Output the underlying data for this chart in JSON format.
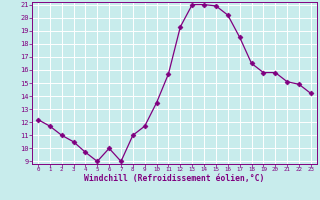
{
  "x": [
    0,
    1,
    2,
    3,
    4,
    5,
    6,
    7,
    8,
    9,
    10,
    11,
    12,
    13,
    14,
    15,
    16,
    17,
    18,
    19,
    20,
    21,
    22,
    23
  ],
  "y": [
    12.2,
    11.7,
    11.0,
    10.5,
    9.7,
    9.0,
    10.0,
    9.0,
    11.0,
    11.7,
    13.5,
    15.7,
    19.3,
    21.0,
    21.0,
    20.9,
    20.2,
    18.5,
    16.5,
    15.8,
    15.8,
    15.1,
    14.9,
    14.2
  ],
  "line_color": "#800080",
  "marker": "D",
  "marker_size": 2.5,
  "bg_color": "#c8ecec",
  "grid_color": "#b0d8d8",
  "xlabel": "Windchill (Refroidissement éolien,°C)",
  "xlabel_color": "#800080",
  "tick_color": "#800080",
  "spine_color": "#800080",
  "ylim": [
    9,
    21
  ],
  "xlim": [
    0,
    23
  ],
  "yticks": [
    9,
    10,
    11,
    12,
    13,
    14,
    15,
    16,
    17,
    18,
    19,
    20,
    21
  ],
  "xticks": [
    0,
    1,
    2,
    3,
    4,
    5,
    6,
    7,
    8,
    9,
    10,
    11,
    12,
    13,
    14,
    15,
    16,
    17,
    18,
    19,
    20,
    21,
    22,
    23
  ]
}
